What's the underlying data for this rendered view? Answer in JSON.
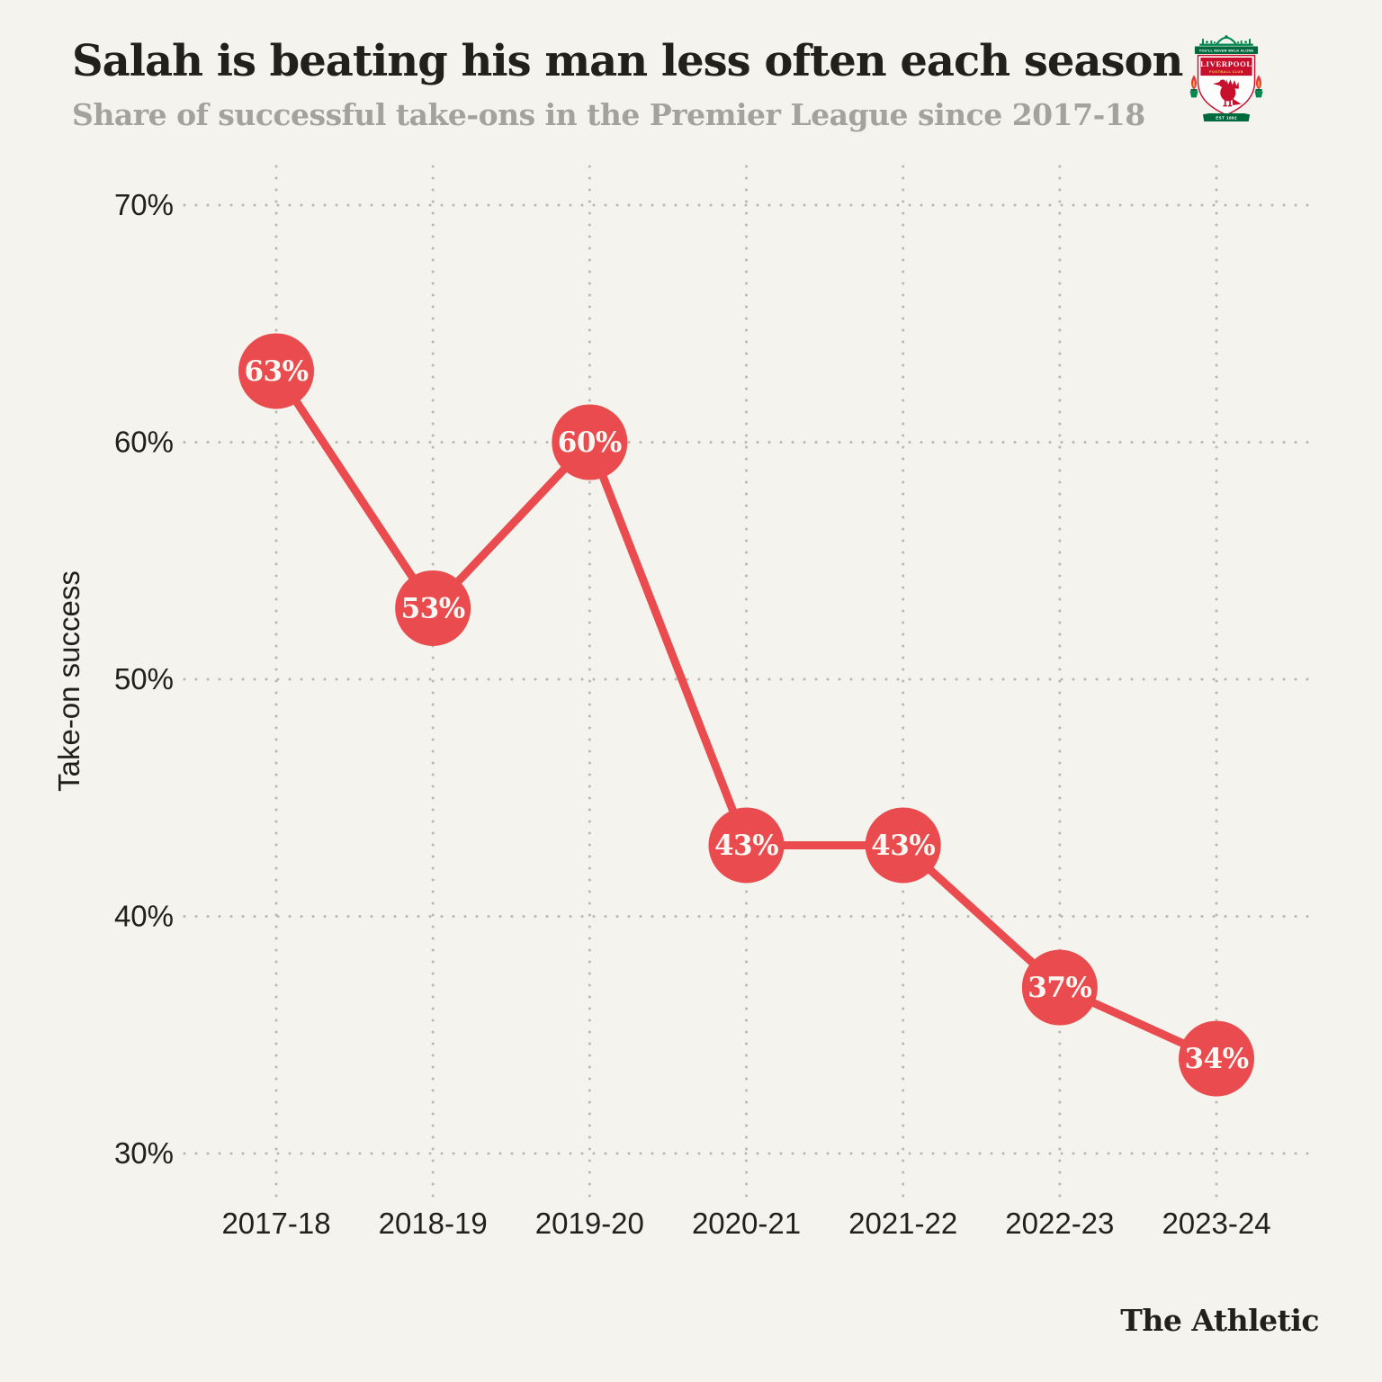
{
  "colors": {
    "background": "#f4f3ed",
    "accent_red": "#e94b4e",
    "title_text": "#21201c",
    "subtitle_text": "#a3a29c",
    "tick_text": "#21201d",
    "grid_dots": "#b9b7ae",
    "point_label_text": "#fbf8f3",
    "crest_red": "#c8102e",
    "crest_green": "#00884f",
    "crest_dark_green": "#006a3d",
    "crest_gold": "#f5d547",
    "flame_orange": "#f8a13a"
  },
  "chart_data": {
    "type": "line",
    "title": "Salah is beating his man less often each season",
    "subtitle": "Share of successful take-ons in the Premier League since 2017-18",
    "categories": [
      "2017-18",
      "2018-19",
      "2019-20",
      "2020-21",
      "2021-22",
      "2022-23",
      "2023-24"
    ],
    "values": [
      63,
      53,
      60,
      43,
      43,
      37,
      34
    ],
    "point_labels": [
      "63%",
      "53%",
      "60%",
      "43%",
      "43%",
      "37%",
      "34%"
    ],
    "xlabel": "",
    "ylabel": "Take-on success",
    "yticks": [
      70,
      60,
      50,
      40,
      30
    ],
    "ytick_labels": [
      "70%",
      "60%",
      "50%",
      "40%",
      "30%"
    ],
    "ylim": [
      28,
      72
    ],
    "grid": "dotted",
    "legend": "none",
    "marker": "circle-with-label"
  },
  "branding": {
    "wordmark": "The Athletic",
    "crest": {
      "name": "liverpool-fc-crest",
      "motto": "YOU'LL NEVER WALK ALONE",
      "club_name": "LIVERPOOL",
      "club_suffix": "FOOTBALL CLUB",
      "established": "EST 1892"
    }
  }
}
